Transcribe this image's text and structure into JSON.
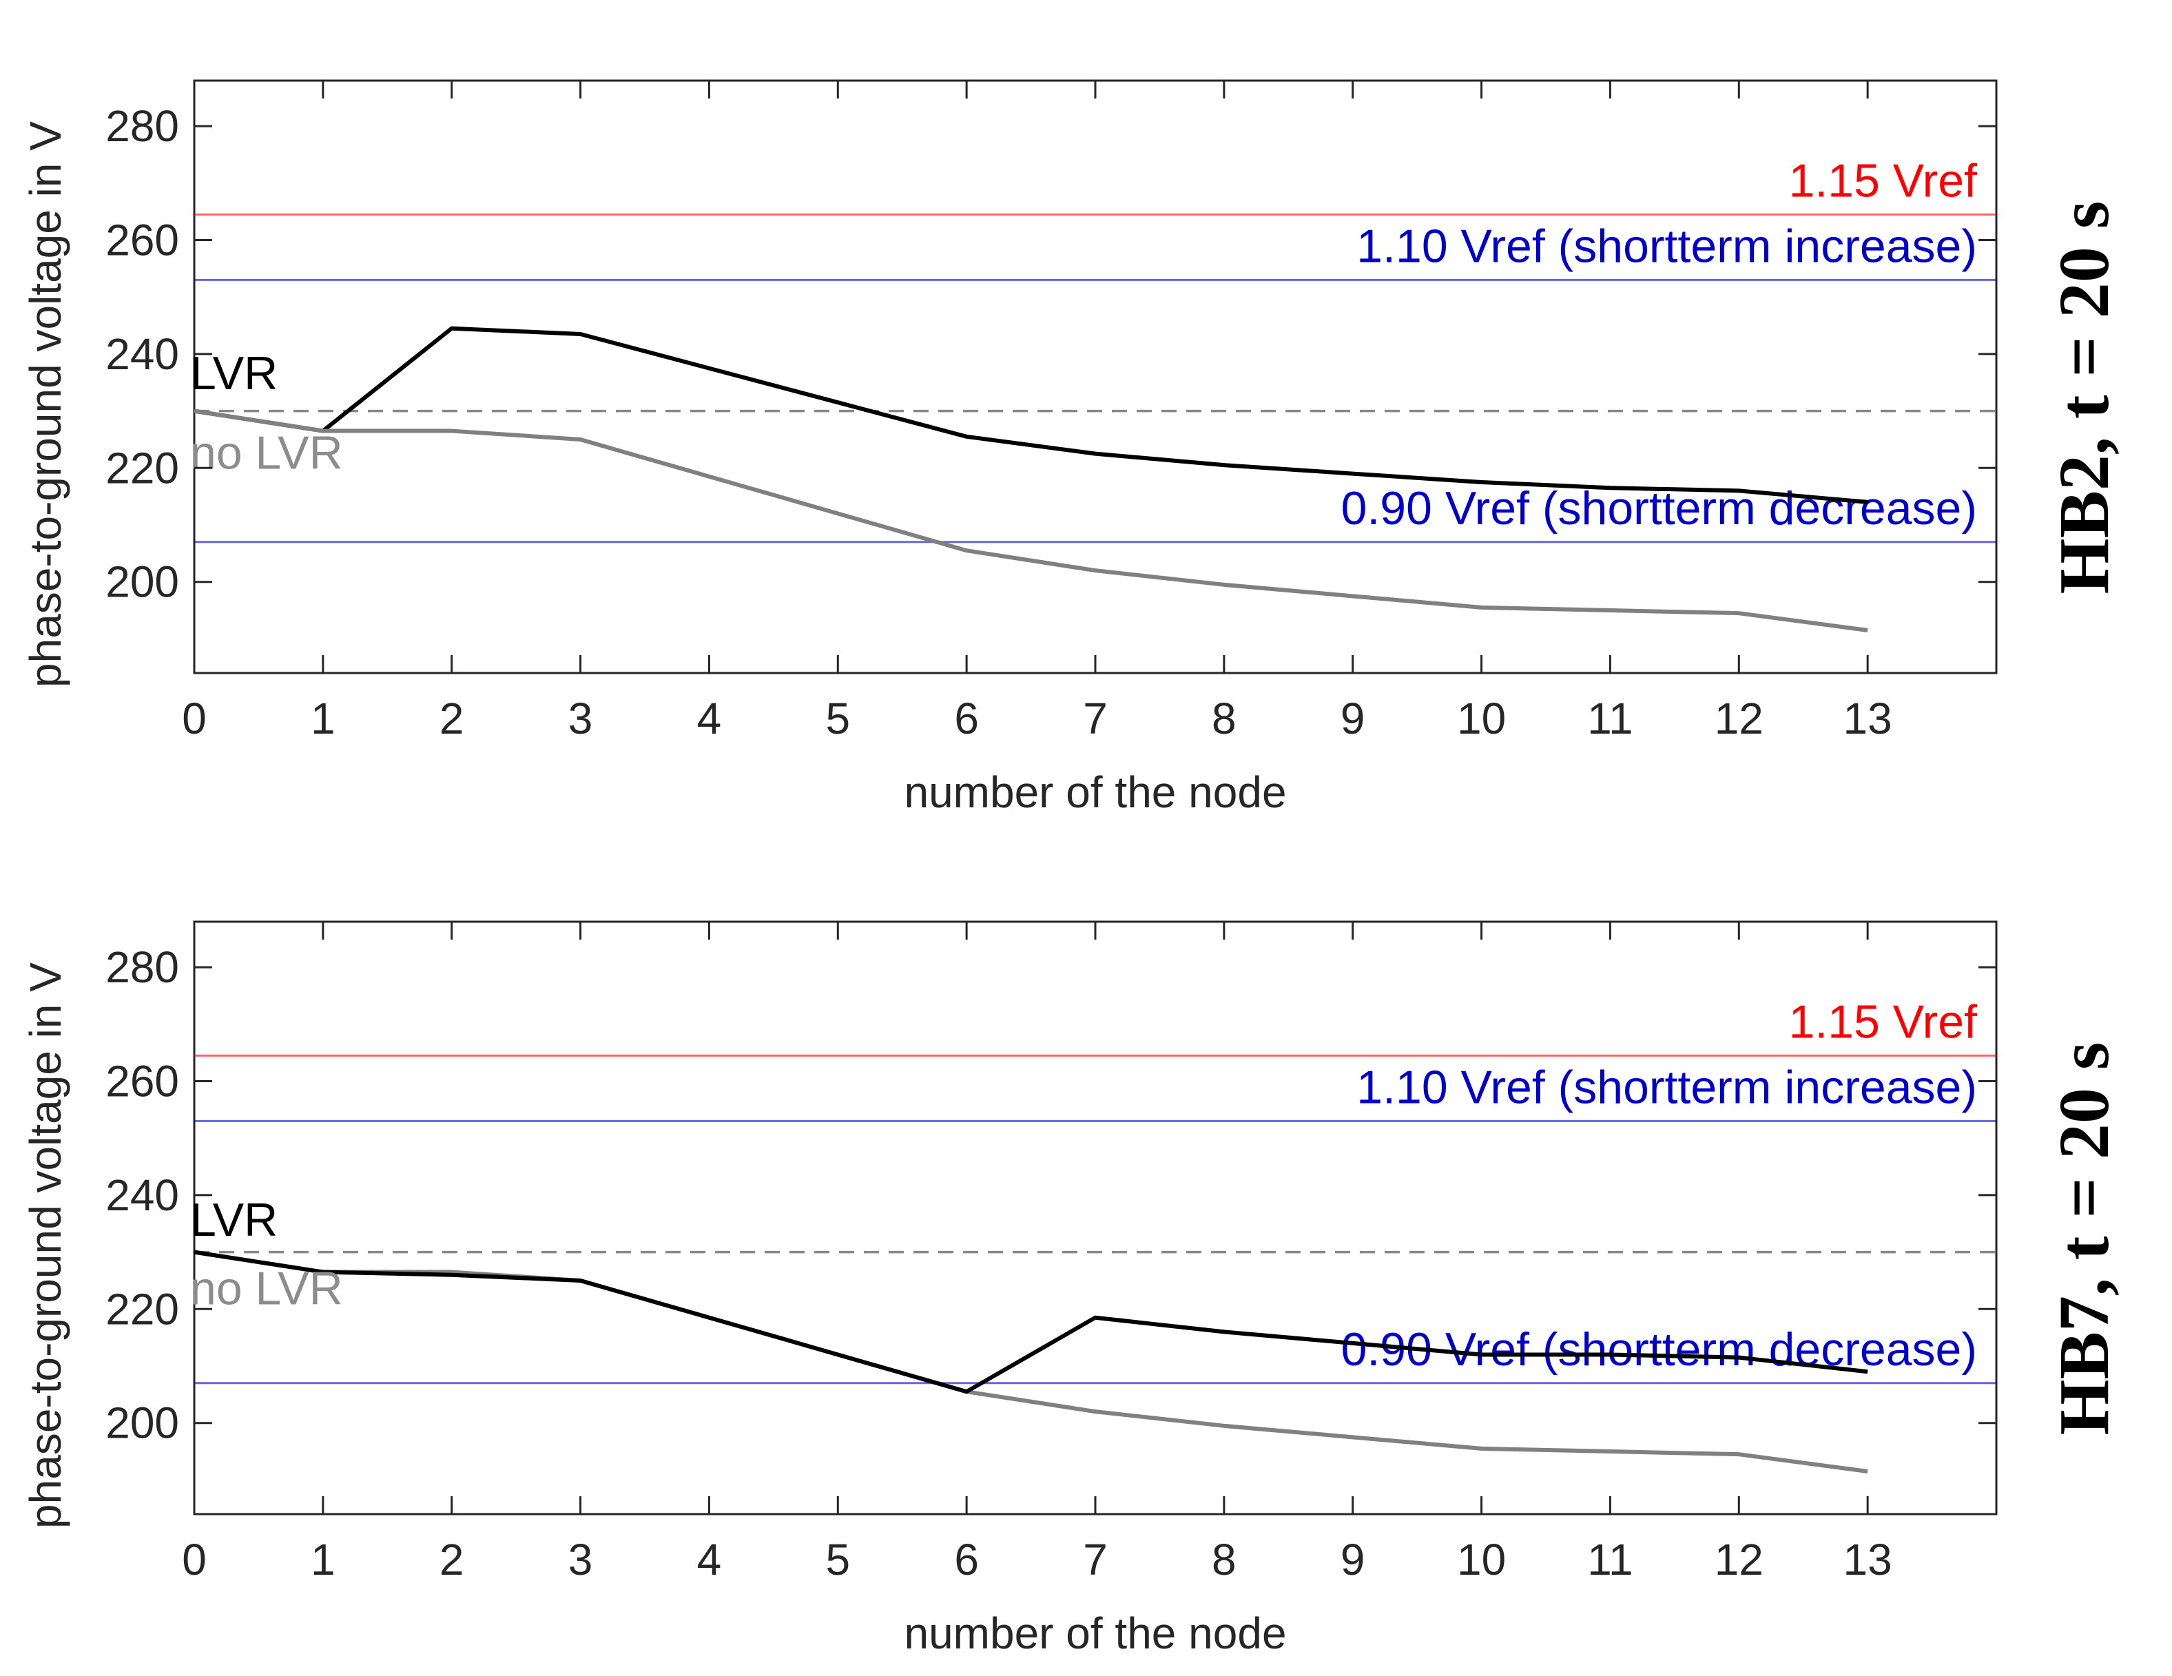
{
  "chart_data": [
    {
      "type": "line",
      "title": "HB2, t = 20 s",
      "xlabel": "number of the node",
      "ylabel": "phase-to-ground voltage in V",
      "xlim": [
        0,
        14
      ],
      "ylim": [
        184,
        288
      ],
      "x_ticks": [
        0,
        1,
        2,
        3,
        4,
        5,
        6,
        7,
        8,
        9,
        10,
        11,
        12,
        13
      ],
      "y_ticks": [
        200,
        220,
        240,
        260,
        280
      ],
      "grid": false,
      "x": [
        0,
        1,
        2,
        3,
        4,
        5,
        6,
        7,
        8,
        9,
        10,
        11,
        12,
        13
      ],
      "series": [
        {
          "name": "LVR",
          "color": "#000000",
          "values": [
            230,
            226.5,
            244.5,
            243.5,
            237.5,
            231.5,
            225.5,
            222.5,
            220.5,
            219,
            217.5,
            216.5,
            216,
            214
          ]
        },
        {
          "name": "no LVR",
          "color": "#808080",
          "values": [
            230,
            226.5,
            226.5,
            225,
            218.5,
            212,
            205.5,
            202,
            199.5,
            197.5,
            195.5,
            195,
            194.5,
            191.5
          ]
        }
      ],
      "reference_lines": [
        {
          "label": "1.15 Vref",
          "value": 264.5,
          "color": "#ff0000",
          "dashed": false
        },
        {
          "label": "1.10 Vref (shortterm increase)",
          "value": 253,
          "color": "#0000cc",
          "dashed": false
        },
        {
          "label": "",
          "value": 230,
          "color": "#888888",
          "dashed": true
        },
        {
          "label": "0.90 Vref (shortterm decrease)",
          "value": 207,
          "color": "#0000cc",
          "dashed": false
        }
      ],
      "line_labels": [
        {
          "text": "LVR",
          "color": "#000000"
        },
        {
          "text": "no LVR",
          "color": "#8c8c8c"
        }
      ]
    },
    {
      "type": "line",
      "title": "HB7, t = 20 s",
      "xlabel": "number of the node",
      "ylabel": "phase-to-ground voltage in V",
      "xlim": [
        0,
        14
      ],
      "ylim": [
        184,
        288
      ],
      "x_ticks": [
        0,
        1,
        2,
        3,
        4,
        5,
        6,
        7,
        8,
        9,
        10,
        11,
        12,
        13
      ],
      "y_ticks": [
        200,
        220,
        240,
        260,
        280
      ],
      "grid": false,
      "x": [
        0,
        1,
        2,
        3,
        4,
        5,
        6,
        7,
        8,
        9,
        10,
        11,
        12,
        13
      ],
      "series": [
        {
          "name": "no LVR",
          "color": "#808080",
          "values": [
            230,
            226.5,
            226.5,
            225,
            218.5,
            212,
            205.5,
            202,
            199.5,
            197.5,
            195.5,
            195,
            194.5,
            191.5
          ]
        },
        {
          "name": "LVR",
          "color": "#000000",
          "values": [
            230,
            226.5,
            226,
            225,
            218.5,
            212,
            205.5,
            218.5,
            216,
            214,
            212,
            212,
            211.5,
            209
          ]
        }
      ],
      "reference_lines": [
        {
          "label": "1.15 Vref",
          "value": 264.5,
          "color": "#ff0000",
          "dashed": false
        },
        {
          "label": "1.10 Vref (shortterm increase)",
          "value": 253,
          "color": "#0000cc",
          "dashed": false
        },
        {
          "label": "",
          "value": 230,
          "color": "#888888",
          "dashed": true
        },
        {
          "label": "0.90 Vref (shortterm decrease)",
          "value": 207,
          "color": "#0000cc",
          "dashed": false
        }
      ],
      "line_labels": [
        {
          "text": "LVR",
          "color": "#000000"
        },
        {
          "text": "no LVR",
          "color": "#8c8c8c"
        }
      ]
    }
  ]
}
